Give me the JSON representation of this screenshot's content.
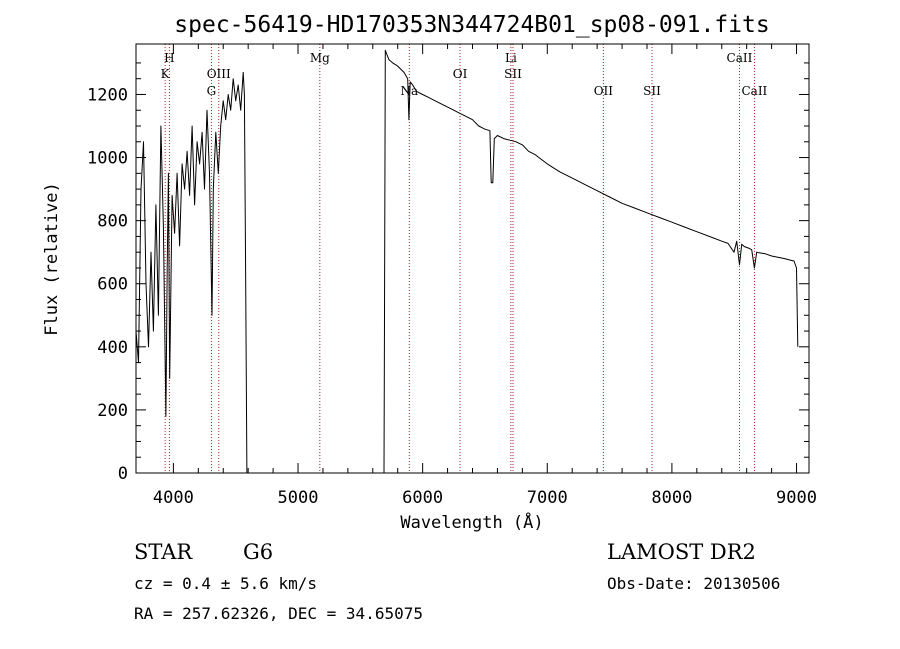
{
  "chart_data": {
    "type": "line",
    "title": "spec-56419-HD170353N344724B01_sp08-091.fits",
    "xlabel": "Wavelength (Å)",
    "ylabel": "Flux (relative)",
    "xlim": [
      3700,
      9100
    ],
    "ylim": [
      0,
      1360
    ],
    "x_ticks": [
      4000,
      5000,
      6000,
      7000,
      8000,
      9000
    ],
    "y_ticks": [
      0,
      200,
      400,
      600,
      800,
      1000,
      1200
    ],
    "x_tick_labels": [
      "4000",
      "5000",
      "6000",
      "7000",
      "8000",
      "9000"
    ],
    "y_tick_labels": [
      "0",
      "200",
      "400",
      "600",
      "800",
      "1000",
      "1200"
    ],
    "grid": false,
    "line_color": "#000000",
    "marker_color": "#b22222",
    "series": [
      {
        "segments": [
          {
            "x": [
              3700,
              3720,
              3740,
              3760,
              3780,
              3800,
              3820,
              3840,
              3860,
              3880,
              3900,
              3920,
              3940,
              3950,
              3960,
              3970,
              3990,
              4010,
              4030,
              4050,
              4070,
              4090,
              4110,
              4130,
              4150,
              4170,
              4190,
              4210,
              4230,
              4250,
              4270,
              4290,
              4310,
              4320,
              4340,
              4360,
              4380,
              4400,
              4420,
              4440,
              4460,
              4480,
              4500,
              4520,
              4540,
              4560,
              4570,
              4580,
              4590
            ],
            "y": [
              450,
              350,
              900,
              1050,
              600,
              400,
              700,
              450,
              850,
              500,
              1100,
              780,
              180,
              650,
              950,
              300,
              880,
              760,
              950,
              720,
              980,
              900,
              1020,
              880,
              1100,
              850,
              1050,
              980,
              1080,
              900,
              1150,
              950,
              500,
              900,
              1080,
              950,
              1100,
              1180,
              1120,
              1200,
              1150,
              1250,
              1180,
              1230,
              1150,
              1270,
              1200,
              600,
              0
            ]
          },
          {
            "x": [
              5690,
              5695,
              5700,
              5710,
              5730,
              5760,
              5800,
              5850,
              5880,
              5890,
              5900,
              5920,
              5950,
              6000,
              6050,
              6100,
              6150,
              6200,
              6250,
              6300,
              6350,
              6400,
              6450,
              6500,
              6540,
              6550,
              6563,
              6575,
              6600,
              6650,
              6700,
              6750,
              6800,
              6850,
              6900,
              6950,
              7000,
              7100,
              7200,
              7300,
              7400,
              7500,
              7600,
              7700,
              7800,
              7900,
              8000,
              8100,
              8200,
              8300,
              8400,
              8450,
              8498,
              8520,
              8542,
              8560,
              8580,
              8620,
              8640,
              8662,
              8680,
              8700,
              8750,
              8800,
              8850,
              8900,
              8950,
              8980,
              9000,
              9010
            ],
            "y": [
              0,
              600,
              1340,
              1330,
              1310,
              1300,
              1290,
              1270,
              1250,
              1120,
              1240,
              1230,
              1210,
              1200,
              1190,
              1180,
              1170,
              1160,
              1150,
              1140,
              1130,
              1120,
              1100,
              1090,
              1085,
              920,
              920,
              1060,
              1070,
              1060,
              1055,
              1050,
              1040,
              1020,
              1010,
              995,
              980,
              955,
              935,
              915,
              895,
              875,
              855,
              840,
              825,
              810,
              795,
              780,
              765,
              750,
              735,
              728,
              700,
              735,
              660,
              725,
              718,
              712,
              708,
              650,
              700,
              698,
              695,
              688,
              684,
              680,
              675,
              672,
              650,
              400
            ]
          }
        ]
      }
    ],
    "line_markers": [
      {
        "label": "H",
        "x": 3968,
        "row": 1
      },
      {
        "label": "K",
        "x": 3934,
        "row": 2
      },
      {
        "label": "G",
        "x": 4305,
        "row": 3
      },
      {
        "label": "OIII",
        "x": 4364,
        "row": 2
      },
      {
        "label": "Mg",
        "x": 5175,
        "row": 1
      },
      {
        "label": "Na",
        "x": 5893,
        "row": 3
      },
      {
        "label": "OI",
        "x": 6300,
        "row": 2
      },
      {
        "label": "Li",
        "x": 6708,
        "row": 1
      },
      {
        "label": "SII",
        "x": 6725,
        "row": 2
      },
      {
        "label": "OII",
        "x": 7450,
        "row": 3
      },
      {
        "label": "SII",
        "x": 7840,
        "row": 3
      },
      {
        "label": "CaII",
        "x": 8542,
        "row": 1
      },
      {
        "label": "CaII",
        "x": 8662,
        "row": 3
      }
    ]
  },
  "info": {
    "object_class": "STAR",
    "subclass": "G6",
    "survey": "LAMOST DR2",
    "redshift": "cz = 0.4 ± 5.6 km/s",
    "obs_date": "Obs-Date: 20130506",
    "coords": "RA = 257.62326, DEC =  34.65075"
  }
}
